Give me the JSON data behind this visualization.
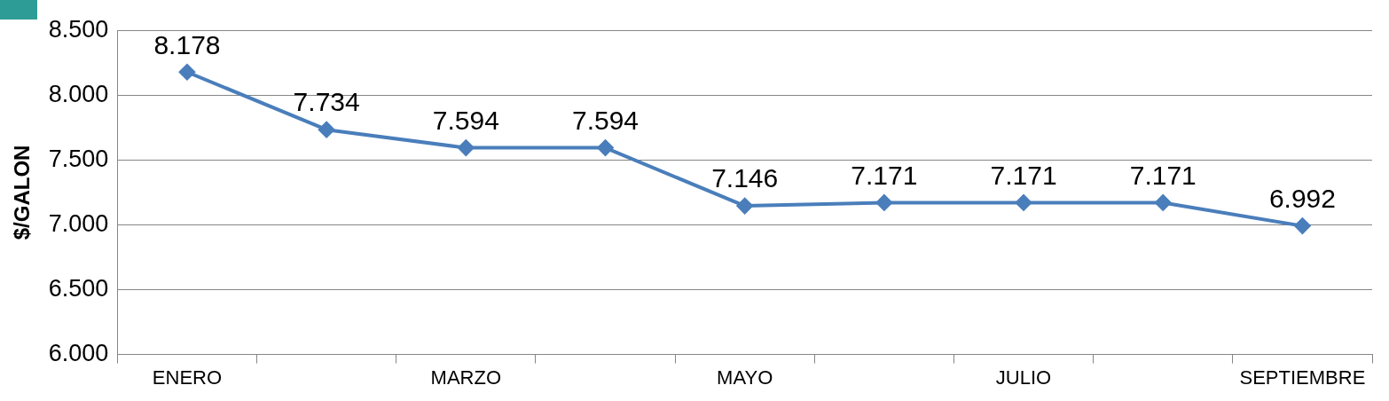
{
  "chart_data": {
    "type": "line",
    "ylabel": "$/GALON",
    "categories": [
      "ENERO",
      null,
      "MARZO",
      null,
      "MAYO",
      null,
      "JULIO",
      null,
      "SEPTIEMBRE"
    ],
    "series": [
      {
        "color": "#4a7ebb",
        "values": [
          8178,
          7734,
          7594,
          7594,
          7146,
          7171,
          7171,
          7171,
          6992
        ],
        "value_labels": [
          "8.178",
          "7.734",
          "7.594",
          "7.594",
          "7.146",
          "7.171",
          "7.171",
          "7.171",
          "6.992"
        ]
      }
    ],
    "ylim": [
      6000,
      8500
    ],
    "yticks": [
      {
        "value": 6000,
        "label": "6.000"
      },
      {
        "value": 6500,
        "label": "6.500"
      },
      {
        "value": 7000,
        "label": "7.000"
      },
      {
        "value": 7500,
        "label": "7.500"
      },
      {
        "value": 8000,
        "label": "8.000"
      },
      {
        "value": 8500,
        "label": "8.500"
      }
    ],
    "grid": "y",
    "marker": "diamond",
    "line_style": "solid"
  }
}
